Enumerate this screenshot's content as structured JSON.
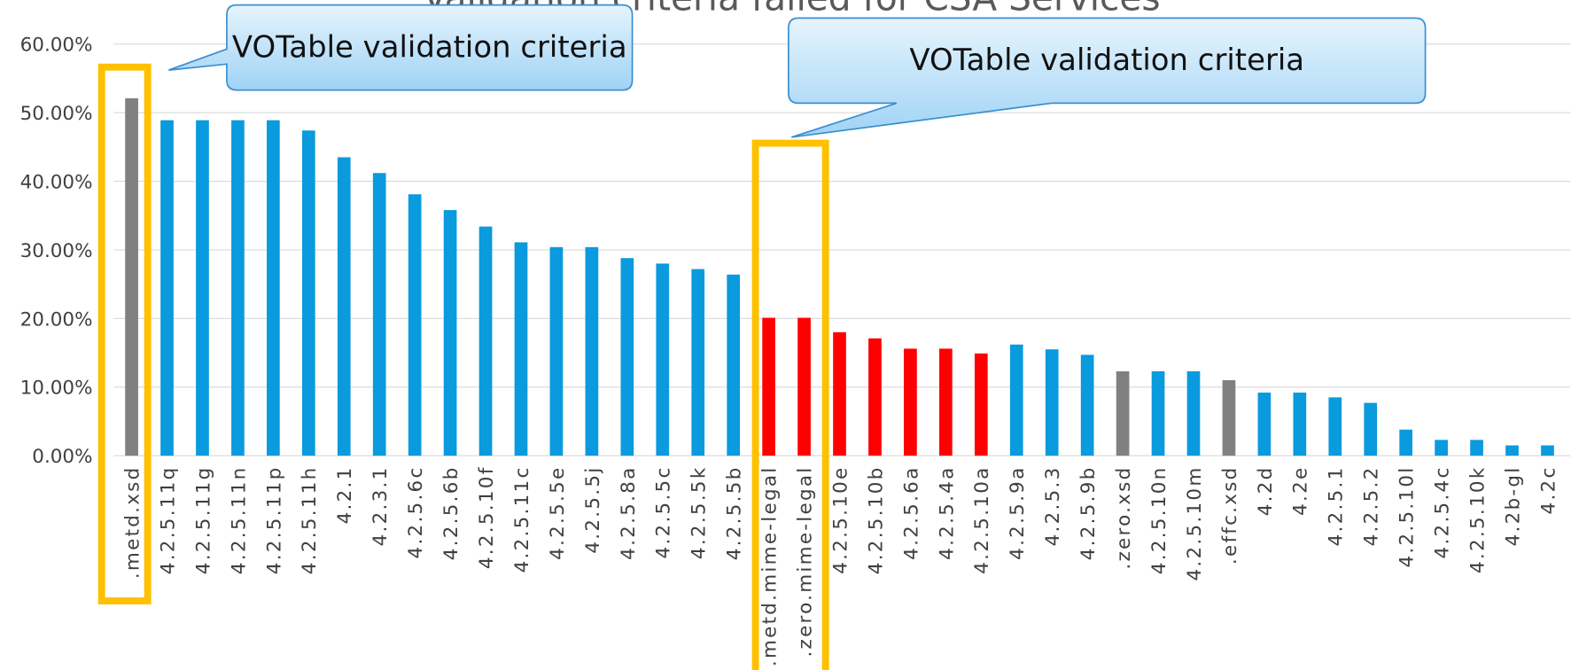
{
  "chart_data": {
    "type": "bar",
    "title": "Validation criteria failed for CSA Services",
    "categories": [
      ".metd.xsd",
      "4.2.5.11q",
      "4.2.5.11g",
      "4.2.5.11n",
      "4.2.5.11p",
      "4.2.5.11h",
      "4.2.1",
      "4.2.3.1",
      "4.2.5.6c",
      "4.2.5.6b",
      "4.2.5.10f",
      "4.2.5.11c",
      "4.2.5.5e",
      "4.2.5.5j",
      "4.2.5.8a",
      "4.2.5.5c",
      "4.2.5.5k",
      "4.2.5.5b",
      ".metd.mime-legal",
      ".zero.mime-legal",
      "4.2.5.10e",
      "4.2.5.10b",
      "4.2.5.6a",
      "4.2.5.4a",
      "4.2.5.10a",
      "4.2.5.9a",
      "4.2.5.3",
      "4.2.5.9b",
      ".zero.xsd",
      "4.2.5.10n",
      "4.2.5.10m",
      ".effc.xsd",
      "4.2d",
      "4.2e",
      "4.2.5.1",
      "4.2.5.2",
      "4.2.5.10l",
      "4.2.5.4c",
      "4.2.5.10k",
      "4.2b-gl",
      "4.2c"
    ],
    "values": [
      52.1,
      48.9,
      48.9,
      48.9,
      48.9,
      47.4,
      43.5,
      41.2,
      38.1,
      35.8,
      33.4,
      31.1,
      30.4,
      30.4,
      28.8,
      28.0,
      27.2,
      26.4,
      20.1,
      20.1,
      18.0,
      17.1,
      15.6,
      15.6,
      14.9,
      16.2,
      15.5,
      14.7,
      12.3,
      12.3,
      12.3,
      11.0,
      9.2,
      9.2,
      8.5,
      7.7,
      3.8,
      2.3,
      2.3,
      1.5,
      1.5
    ],
    "colors": [
      "#808080",
      "#0a9ade",
      "#0a9ade",
      "#0a9ade",
      "#0a9ade",
      "#0a9ade",
      "#0a9ade",
      "#0a9ade",
      "#0a9ade",
      "#0a9ade",
      "#0a9ade",
      "#0a9ade",
      "#0a9ade",
      "#0a9ade",
      "#0a9ade",
      "#0a9ade",
      "#0a9ade",
      "#0a9ade",
      "#ff0000",
      "#ff0000",
      "#ff0000",
      "#ff0000",
      "#ff0000",
      "#ff0000",
      "#ff0000",
      "#0a9ade",
      "#0a9ade",
      "#0a9ade",
      "#808080",
      "#0a9ade",
      "#0a9ade",
      "#808080",
      "#0a9ade",
      "#0a9ade",
      "#0a9ade",
      "#0a9ade",
      "#0a9ade",
      "#0a9ade",
      "#0a9ade",
      "#0a9ade",
      "#0a9ade"
    ],
    "ylim": [
      0,
      60
    ],
    "yticks": [
      {
        "value": 0,
        "label": "0.00%"
      },
      {
        "value": 10,
        "label": "10.00%"
      },
      {
        "value": 20,
        "label": "20.00%"
      },
      {
        "value": 30,
        "label": "30.00%"
      },
      {
        "value": 40,
        "label": "40.00%"
      },
      {
        "value": 50,
        "label": "50.00%"
      },
      {
        "value": 60,
        "label": "60.00%"
      }
    ],
    "grid": true,
    "annotations": [
      "VOTable validation criteria",
      "VOTable validation criteria"
    ]
  }
}
